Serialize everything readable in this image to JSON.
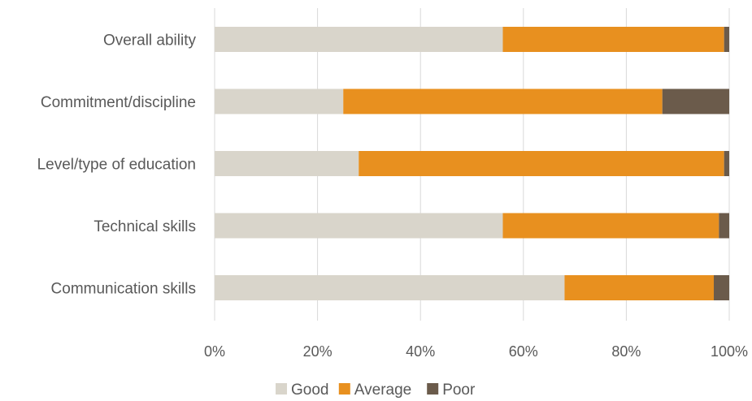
{
  "chart_data": {
    "type": "bar",
    "orientation": "horizontal",
    "stacked": "percent",
    "categories": [
      "Overall ability",
      "Commitment/discipline",
      "Level/type of education",
      "Technical skills",
      "Communication skills"
    ],
    "series": [
      {
        "name": "Good",
        "color": "#d9d5cb",
        "values": [
          56,
          25,
          28,
          56,
          68
        ]
      },
      {
        "name": "Average",
        "color": "#e8901f",
        "values": [
          43,
          62,
          71,
          42,
          29
        ]
      },
      {
        "name": "Poor",
        "color": "#6b5b4b",
        "values": [
          1,
          13,
          1,
          2,
          3
        ]
      }
    ],
    "xlim": [
      0,
      100
    ],
    "xticks": [
      "0%",
      "20%",
      "40%",
      "60%",
      "80%",
      "100%"
    ],
    "title": "",
    "xlabel": "",
    "ylabel": "",
    "grid": "vertical",
    "legend": "bottom-center"
  }
}
